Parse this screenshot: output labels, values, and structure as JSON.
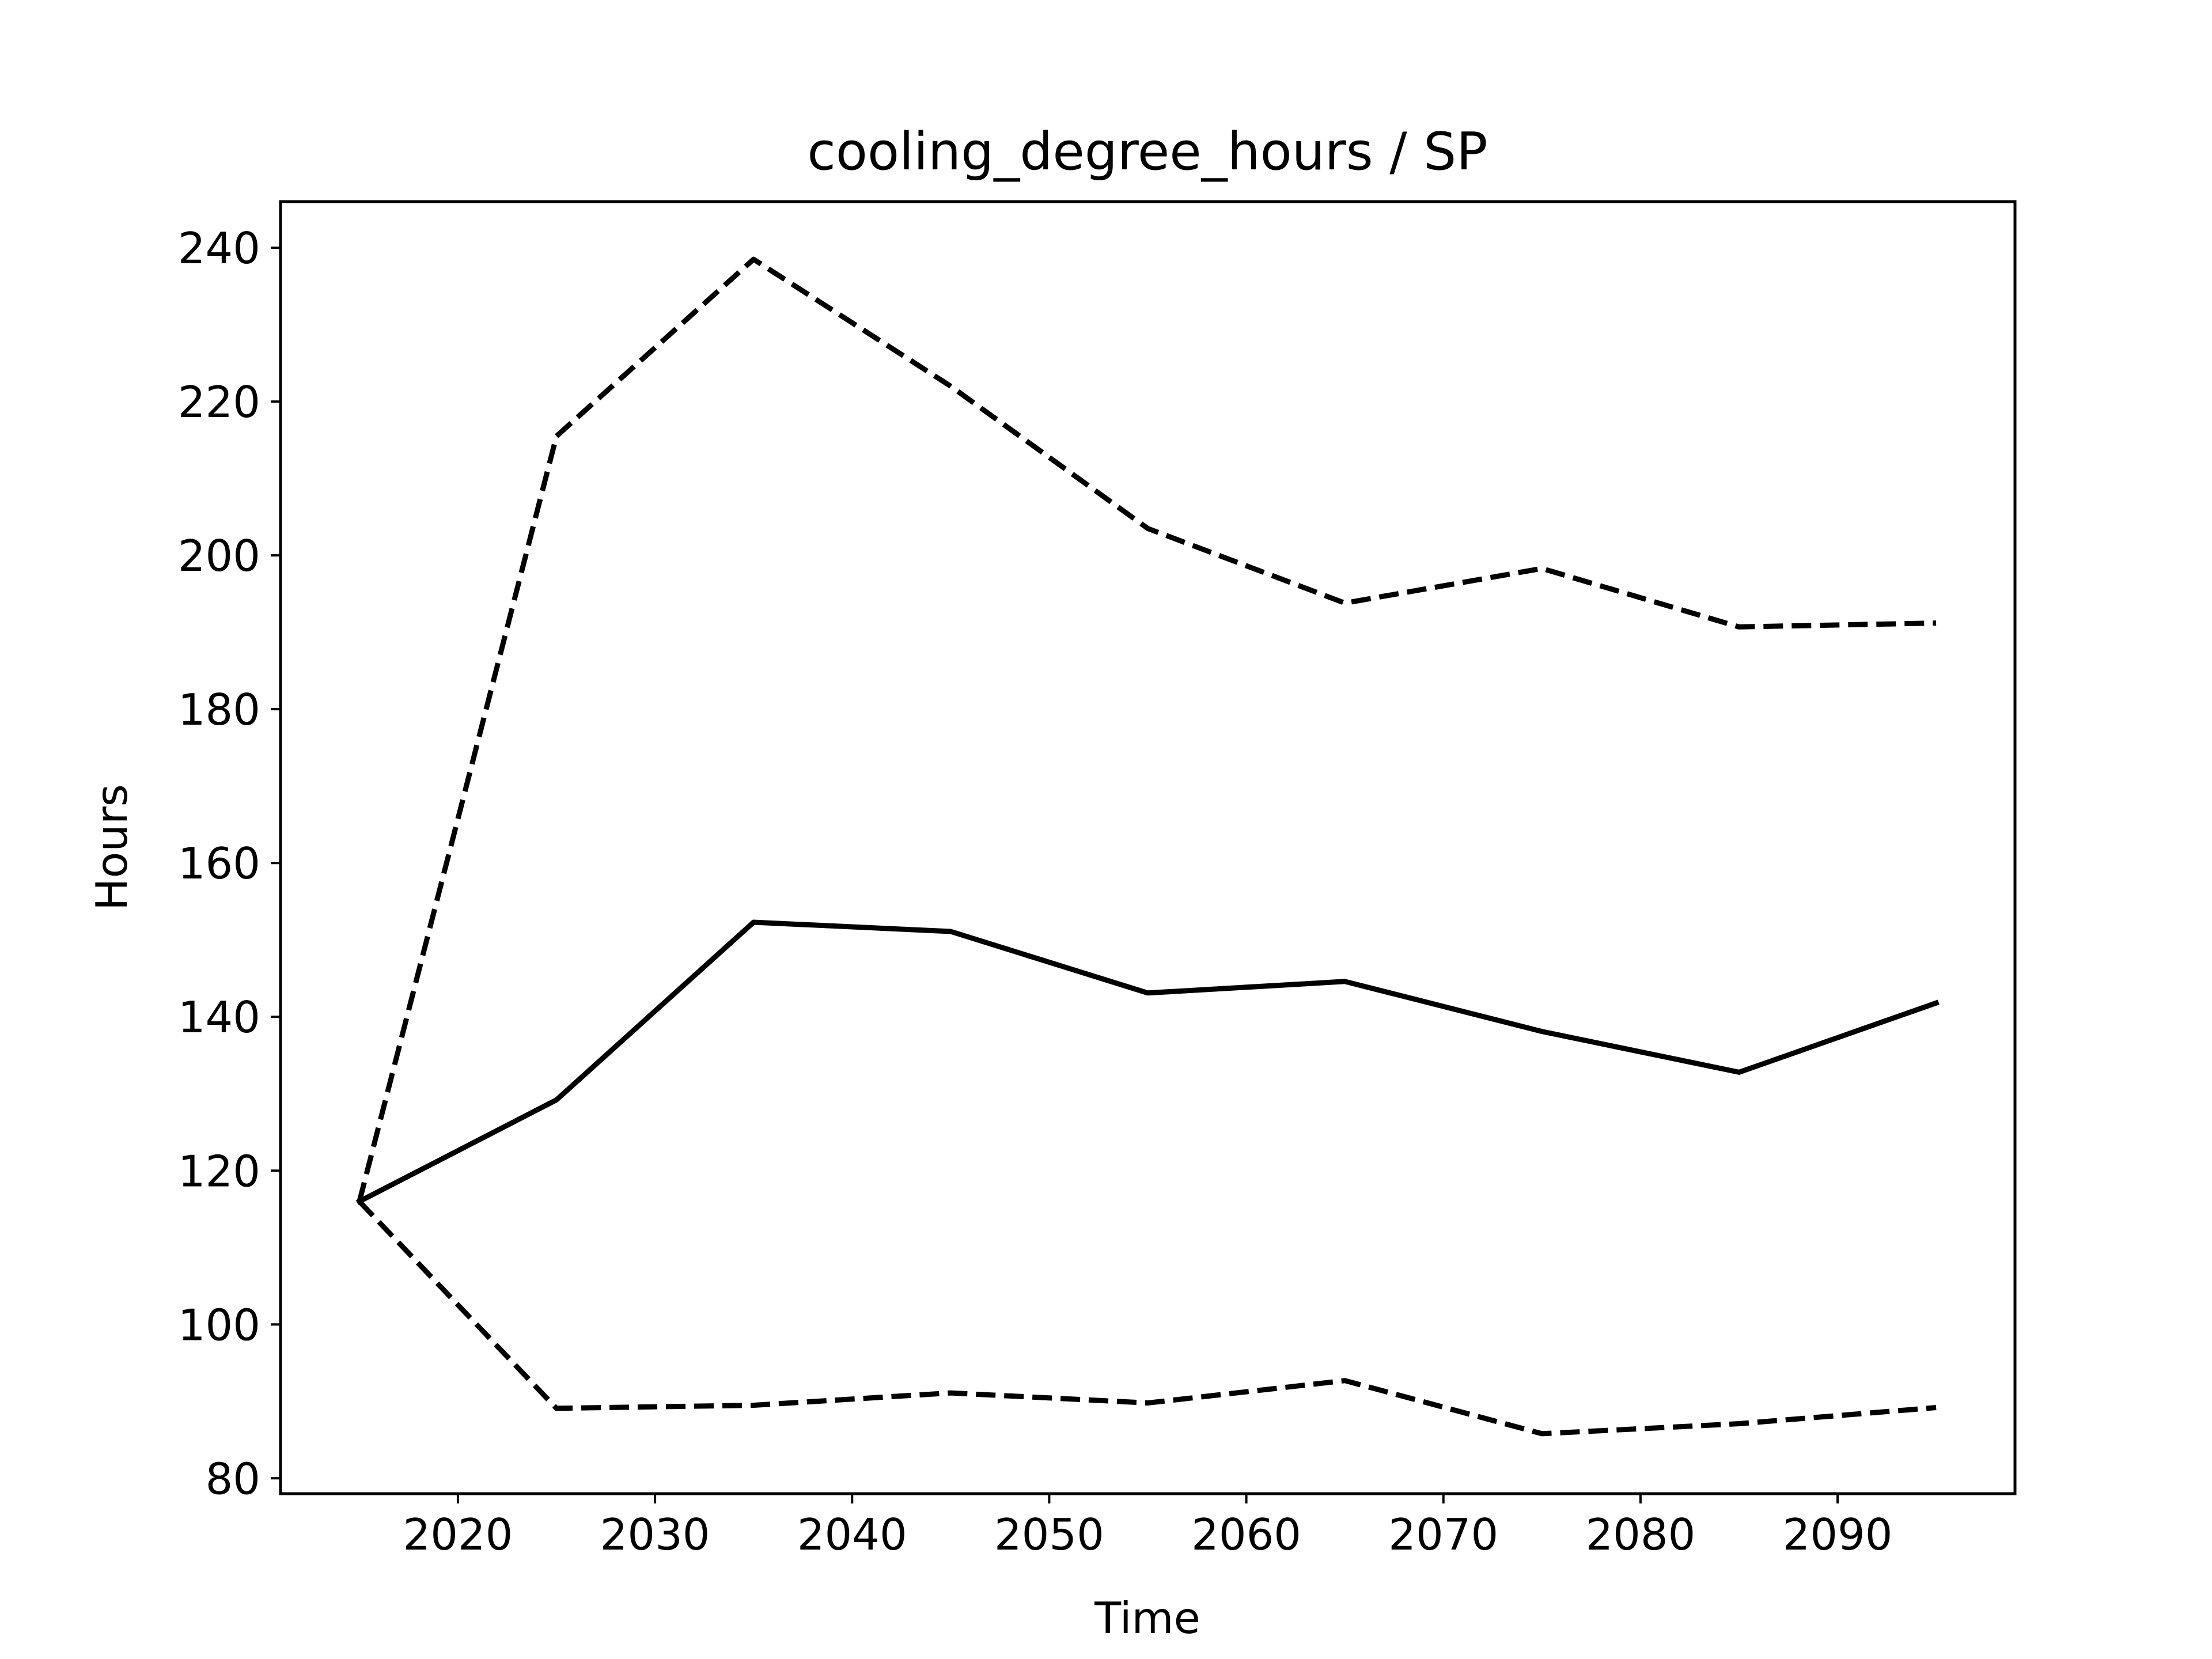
{
  "chart_data": {
    "type": "line",
    "title": "cooling_degree_hours / SP",
    "xlabel": "Time",
    "ylabel": "Hours",
    "xlim": [
      2011,
      2099
    ],
    "ylim": [
      78,
      246
    ],
    "xticks": [
      2020,
      2030,
      2040,
      2050,
      2060,
      2070,
      2080,
      2090
    ],
    "yticks": [
      80,
      100,
      120,
      140,
      160,
      180,
      200,
      220,
      240
    ],
    "grid": false,
    "legend": "none",
    "line_color": "#000000",
    "x": [
      2015,
      2025,
      2035,
      2045,
      2055,
      2065,
      2075,
      2085,
      2095
    ],
    "series": [
      {
        "style": "dashed",
        "values": [
          116,
          215.5,
          238.5,
          222,
          203.5,
          193.8,
          198.3,
          190.7,
          191.2
        ]
      },
      {
        "style": "solid",
        "values": [
          116,
          129.2,
          152.3,
          151.1,
          143.1,
          144.6,
          138.1,
          132.8,
          141.8
        ]
      },
      {
        "style": "dashed",
        "values": [
          116,
          89.1,
          89.5,
          91.1,
          89.8,
          92.7,
          85.8,
          87.1,
          89.2
        ]
      }
    ]
  }
}
